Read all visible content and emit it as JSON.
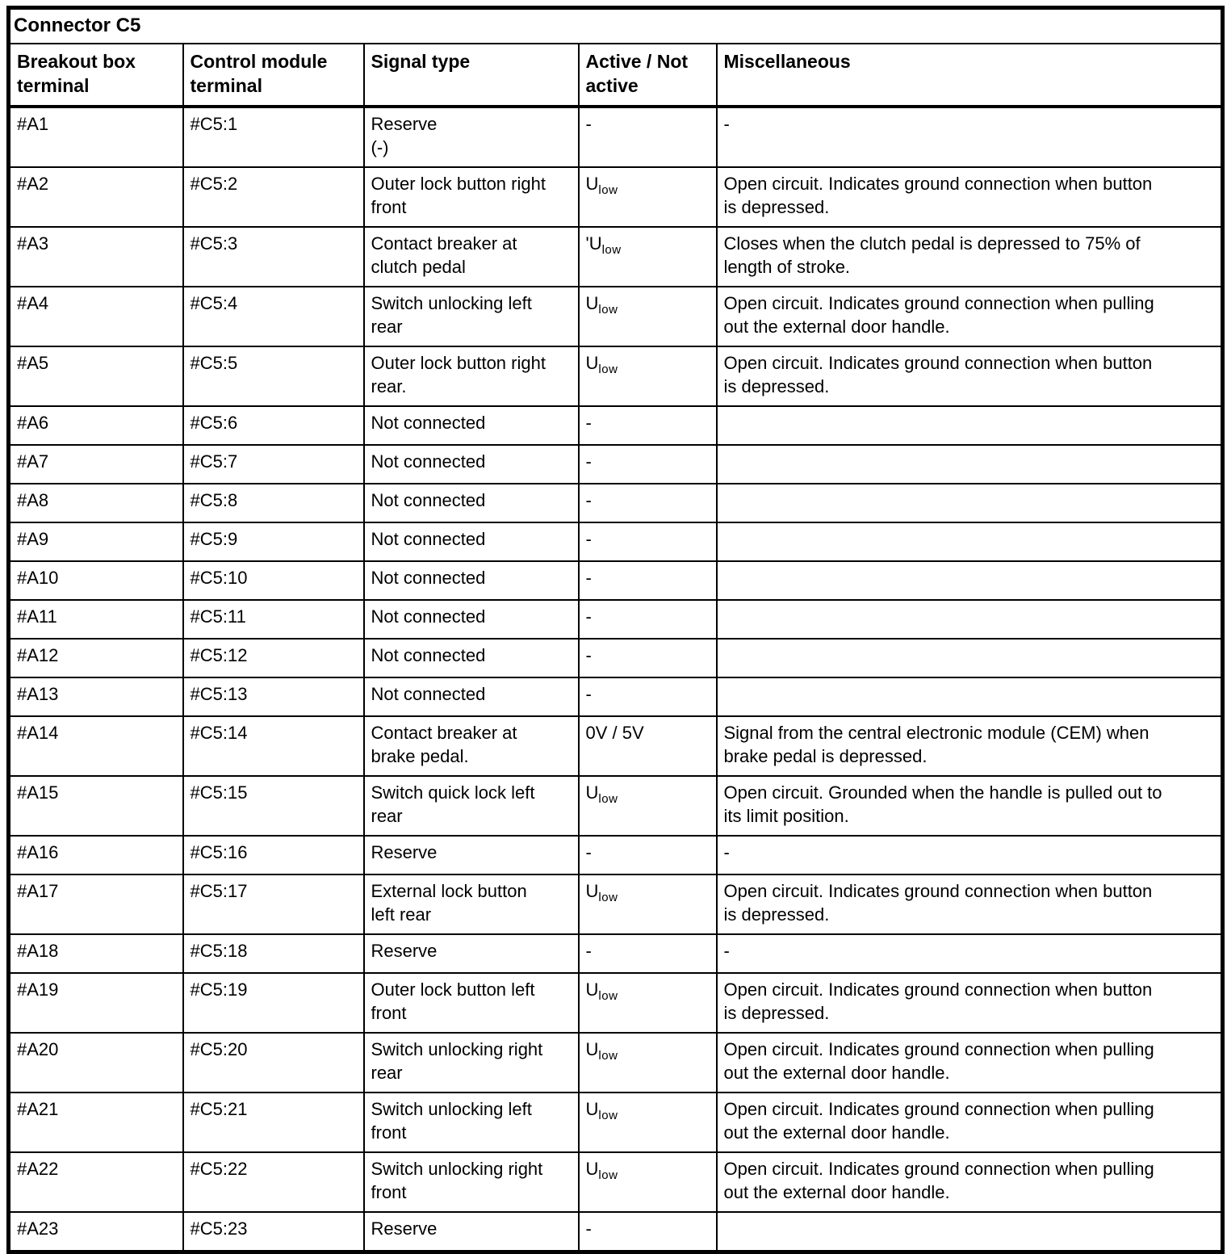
{
  "table": {
    "title": "Connector C5",
    "columns": [
      "Breakout box\nterminal",
      "Control module\nterminal",
      "Signal type",
      "Active / Not\nactive",
      "Miscellaneous"
    ],
    "rows": [
      {
        "breakout": "#A1",
        "module": "#C5:1",
        "signal": "Reserve\n(-)",
        "active": "-",
        "active_sub": "",
        "misc": "-"
      },
      {
        "breakout": "#A2",
        "module": "#C5:2",
        "signal": "Outer lock button right\nfront",
        "active": "U",
        "active_sub": "low",
        "misc": "Open circuit. Indicates ground connection when button\nis depressed."
      },
      {
        "breakout": "#A3",
        "module": "#C5:3",
        "signal": "Contact breaker at\nclutch pedal",
        "active": "'U",
        "active_sub": "low",
        "misc": "Closes when the clutch pedal is depressed to 75% of\nlength of stroke."
      },
      {
        "breakout": "#A4",
        "module": "#C5:4",
        "signal": "Switch unlocking left\nrear",
        "active": "U",
        "active_sub": "low",
        "misc": "Open circuit. Indicates ground connection when pulling\nout the external door handle."
      },
      {
        "breakout": "#A5",
        "module": "#C5:5",
        "signal": "Outer lock button right\nrear.",
        "active": "U",
        "active_sub": "low",
        "misc": "Open circuit. Indicates ground connection when button\nis depressed."
      },
      {
        "breakout": "#A6",
        "module": "#C5:6",
        "signal": "Not connected",
        "active": "-",
        "active_sub": "",
        "misc": ""
      },
      {
        "breakout": "#A7",
        "module": "#C5:7",
        "signal": "Not connected",
        "active": "-",
        "active_sub": "",
        "misc": ""
      },
      {
        "breakout": "#A8",
        "module": "#C5:8",
        "signal": "Not connected",
        "active": "-",
        "active_sub": "",
        "misc": ""
      },
      {
        "breakout": "#A9",
        "module": "#C5:9",
        "signal": "Not connected",
        "active": "-",
        "active_sub": "",
        "misc": ""
      },
      {
        "breakout": "#A10",
        "module": "#C5:10",
        "signal": "Not connected",
        "active": "-",
        "active_sub": "",
        "misc": ""
      },
      {
        "breakout": "#A11",
        "module": "#C5:11",
        "signal": "Not connected",
        "active": "-",
        "active_sub": "",
        "misc": ""
      },
      {
        "breakout": "#A12",
        "module": "#C5:12",
        "signal": "Not connected",
        "active": "-",
        "active_sub": "",
        "misc": ""
      },
      {
        "breakout": "#A13",
        "module": "#C5:13",
        "signal": "Not connected",
        "active": "-",
        "active_sub": "",
        "misc": ""
      },
      {
        "breakout": "#A14",
        "module": "#C5:14",
        "signal": "Contact breaker at\nbrake pedal.",
        "active": "0V / 5V",
        "active_sub": "",
        "misc": "Signal from the central electronic module (CEM) when\nbrake pedal is depressed."
      },
      {
        "breakout": "#A15",
        "module": "#C5:15",
        "signal": "Switch quick lock left\nrear",
        "active": "U",
        "active_sub": "low",
        "misc": "Open circuit. Grounded when the handle is pulled out to\nits limit position."
      },
      {
        "breakout": "#A16",
        "module": "#C5:16",
        "signal": "Reserve",
        "active": "-",
        "active_sub": "",
        "misc": "-"
      },
      {
        "breakout": "#A17",
        "module": "#C5:17",
        "signal": "External lock button\nleft rear",
        "active": "U",
        "active_sub": "low",
        "misc": "Open circuit. Indicates ground connection when button\nis depressed."
      },
      {
        "breakout": "#A18",
        "module": "#C5:18",
        "signal": "Reserve",
        "active": "-",
        "active_sub": "",
        "misc": "-"
      },
      {
        "breakout": "#A19",
        "module": "#C5:19",
        "signal": "Outer lock button left\nfront",
        "active": "U",
        "active_sub": "low",
        "misc": "Open circuit. Indicates ground connection when button\nis depressed."
      },
      {
        "breakout": "#A20",
        "module": "#C5:20",
        "signal": "Switch unlocking right\nrear",
        "active": "U",
        "active_sub": "low",
        "misc": "Open circuit. Indicates ground connection when pulling\nout the external door handle."
      },
      {
        "breakout": "#A21",
        "module": "#C5:21",
        "signal": "Switch unlocking left\nfront",
        "active": "U",
        "active_sub": "low",
        "misc": "Open circuit. Indicates ground connection when pulling\nout the external door handle."
      },
      {
        "breakout": "#A22",
        "module": "#C5:22",
        "signal": "Switch unlocking right\nfront",
        "active": "U",
        "active_sub": "low",
        "misc": "Open circuit. Indicates ground connection when pulling\nout the external door handle."
      },
      {
        "breakout": "#A23",
        "module": "#C5:23",
        "signal": "Reserve",
        "active": "-",
        "active_sub": "",
        "misc": ""
      }
    ]
  }
}
